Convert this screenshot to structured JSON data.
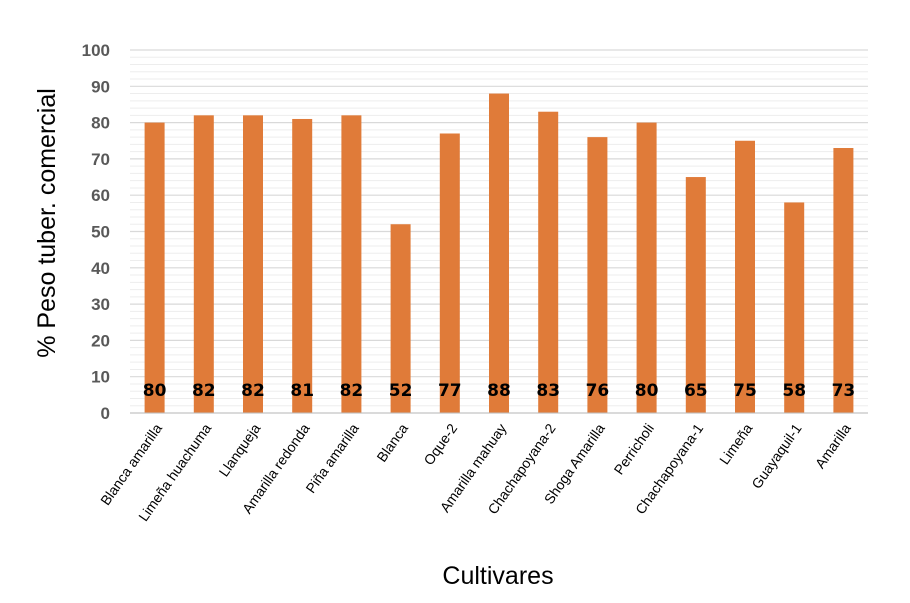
{
  "chart_data": {
    "type": "bar",
    "categories": [
      "Blanca amarilla",
      "Limeña huachuma",
      "Llanqueja",
      "Amarilla redonda",
      "Piña amarilla",
      "Blanca",
      "Oque-2",
      "Amarilla mahuay",
      "Chachapoyana-2",
      "Shoga Amarilla",
      "Perricholi",
      "Chachapoyana-1",
      "Limeña",
      "Guayaquil-1",
      "Amarilla"
    ],
    "values": [
      80,
      82,
      82,
      81,
      82,
      52,
      77,
      88,
      83,
      76,
      80,
      65,
      75,
      58,
      73
    ],
    "data_labels": [
      "80",
      "82",
      "82",
      "81",
      "82",
      "52",
      "77",
      "88",
      "83",
      "76",
      "80",
      "65",
      "75",
      "58",
      "73"
    ],
    "title": "",
    "xlabel": "Cultivares",
    "ylabel": "% Peso tuber. comercial",
    "ylim": [
      0,
      100
    ],
    "yticks": [
      0,
      10,
      20,
      30,
      40,
      50,
      60,
      70,
      80,
      90,
      100
    ],
    "ytick_labels": [
      "0",
      "10",
      "20",
      "30",
      "40",
      "50",
      "60",
      "70",
      "80",
      "90",
      "100"
    ],
    "grid": true,
    "legend": "none",
    "bar_color": "#E07B39",
    "grid_color": "#D9D9D9"
  }
}
